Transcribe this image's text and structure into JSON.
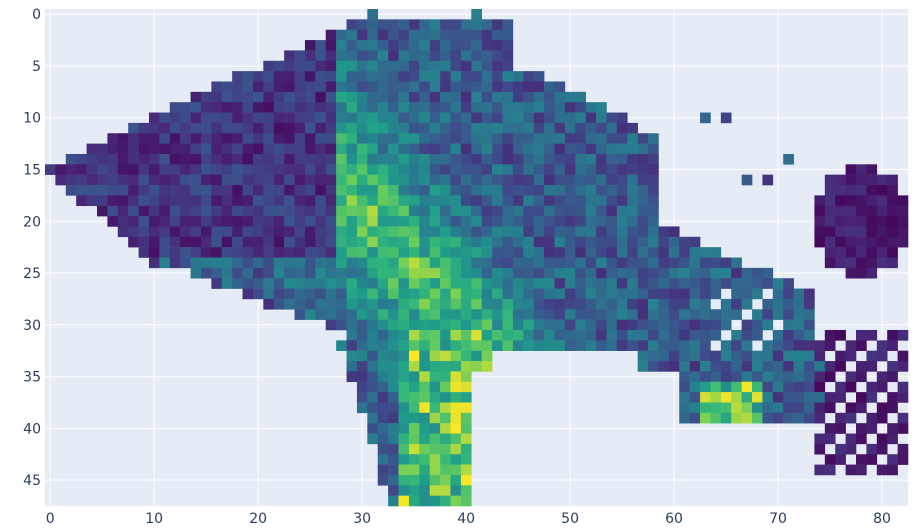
{
  "chart_data": {
    "type": "heatmap",
    "title": "",
    "xlabel": "",
    "ylabel": "",
    "xlim": [
      0,
      82
    ],
    "ylim": [
      47,
      0
    ],
    "x_ticks": [
      "0",
      "10",
      "20",
      "30",
      "40",
      "50",
      "60",
      "70",
      "80"
    ],
    "y_ticks": [
      "0",
      "5",
      "10",
      "15",
      "20",
      "25",
      "30",
      "35",
      "40",
      "45"
    ],
    "x_tick_values": [
      0,
      10,
      20,
      30,
      40,
      50,
      60,
      70,
      80
    ],
    "y_tick_values": [
      0,
      5,
      10,
      15,
      20,
      25,
      30,
      35,
      40,
      45
    ],
    "colorscale": "viridis",
    "value_range": [
      0,
      1
    ],
    "grid": true,
    "plot_background": "#e5ecf6",
    "colors": {
      "dark": "#440154",
      "mid": "#21918c",
      "bright": "#fde725"
    }
  }
}
